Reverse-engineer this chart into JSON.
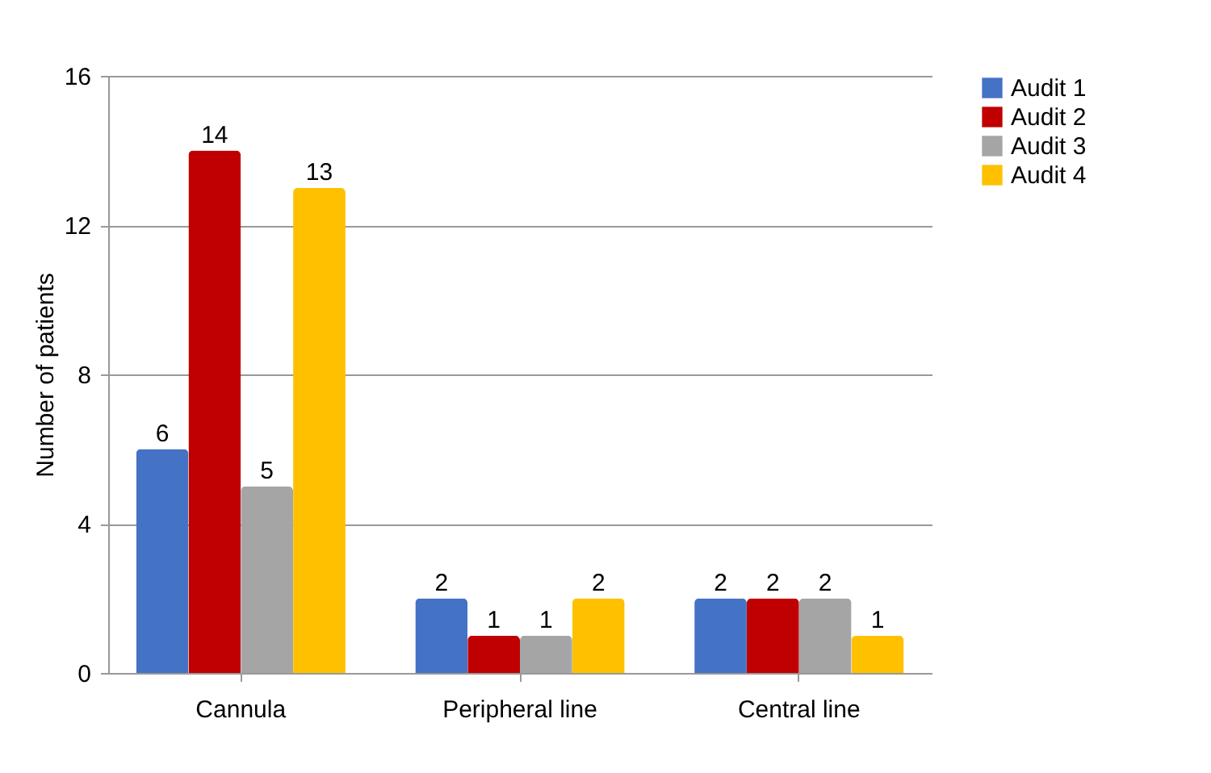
{
  "chart_data": {
    "type": "bar",
    "ylabel": "Number of patients",
    "categories": [
      "Cannula",
      "Peripheral line",
      "Central line"
    ],
    "series": [
      {
        "name": "Audit 1",
        "color": "#4472c4",
        "values": [
          6,
          2,
          2
        ]
      },
      {
        "name": "Audit 2",
        "color": "#c00000",
        "values": [
          14,
          1,
          2
        ]
      },
      {
        "name": "Audit 3",
        "color": "#a5a5a5",
        "values": [
          5,
          1,
          2
        ]
      },
      {
        "name": "Audit 4",
        "color": "#ffc000",
        "values": [
          13,
          2,
          1
        ]
      }
    ],
    "ylim": [
      0,
      16
    ],
    "yticks": [
      0,
      4,
      8,
      12,
      16
    ],
    "grid": "y",
    "legend": "right",
    "data_labels": true
  }
}
